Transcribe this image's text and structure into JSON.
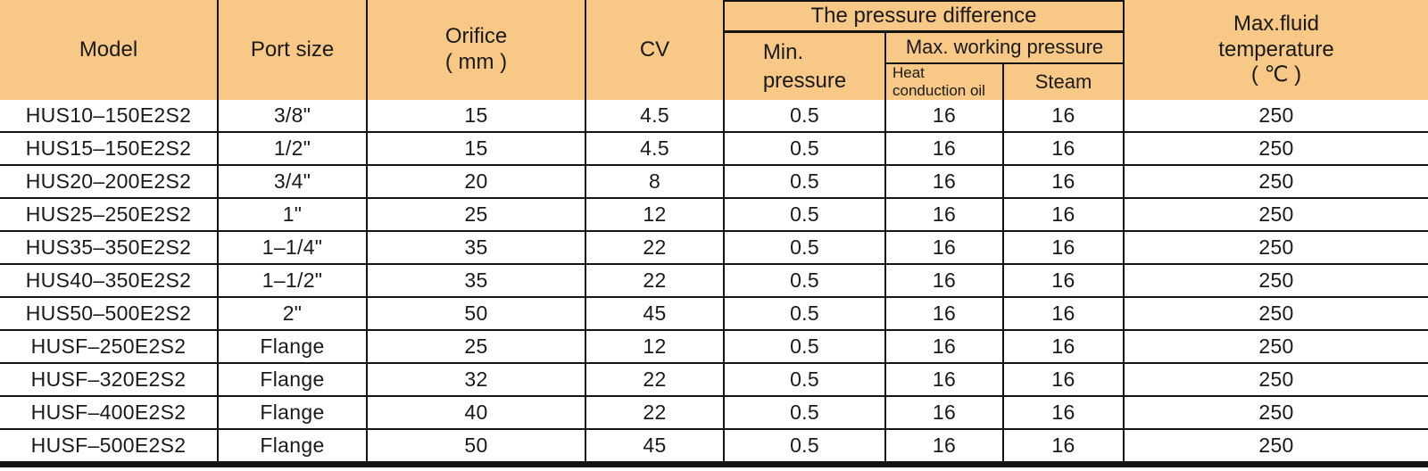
{
  "table": {
    "header": {
      "model": "Model",
      "port_size": "Port size",
      "orifice_line1": "Orifice",
      "orifice_line2": "( mm )",
      "cv": "CV",
      "pressure_difference": "The pressure difference",
      "min_pressure_line1": "Min.",
      "min_pressure_line2": "pressure",
      "max_working_pressure": "Max. working pressure",
      "heat_oil_line1": "Heat",
      "heat_oil_line2": "conduction oil",
      "steam": "Steam",
      "max_fluid_line1": "Max.fluid",
      "max_fluid_line2": "temperature",
      "max_fluid_line3": "( ℃ )"
    },
    "rows": [
      {
        "model": "HUS10–150E2S2",
        "port_size": "3/8\"",
        "orifice": "15",
        "cv": "4.5",
        "min_pressure": "0.5",
        "heat_conduction_oil": "16",
        "steam": "16",
        "max_fluid_temp": "250"
      },
      {
        "model": "HUS15–150E2S2",
        "port_size": "1/2\"",
        "orifice": "15",
        "cv": "4.5",
        "min_pressure": "0.5",
        "heat_conduction_oil": "16",
        "steam": "16",
        "max_fluid_temp": "250"
      },
      {
        "model": "HUS20–200E2S2",
        "port_size": "3/4\"",
        "orifice": "20",
        "cv": "8",
        "min_pressure": "0.5",
        "heat_conduction_oil": "16",
        "steam": "16",
        "max_fluid_temp": "250"
      },
      {
        "model": "HUS25–250E2S2",
        "port_size": "1\"",
        "orifice": "25",
        "cv": "12",
        "min_pressure": "0.5",
        "heat_conduction_oil": "16",
        "steam": "16",
        "max_fluid_temp": "250"
      },
      {
        "model": "HUS35–350E2S2",
        "port_size": "1–1/4\"",
        "orifice": "35",
        "cv": "22",
        "min_pressure": "0.5",
        "heat_conduction_oil": "16",
        "steam": "16",
        "max_fluid_temp": "250"
      },
      {
        "model": "HUS40–350E2S2",
        "port_size": "1–1/2\"",
        "orifice": "35",
        "cv": "22",
        "min_pressure": "0.5",
        "heat_conduction_oil": "16",
        "steam": "16",
        "max_fluid_temp": "250"
      },
      {
        "model": "HUS50–500E2S2",
        "port_size": "2\"",
        "orifice": "50",
        "cv": "45",
        "min_pressure": "0.5",
        "heat_conduction_oil": "16",
        "steam": "16",
        "max_fluid_temp": "250"
      },
      {
        "model": "HUSF–250E2S2",
        "port_size": "Flange",
        "orifice": "25",
        "cv": "12",
        "min_pressure": "0.5",
        "heat_conduction_oil": "16",
        "steam": "16",
        "max_fluid_temp": "250"
      },
      {
        "model": "HUSF–320E2S2",
        "port_size": "Flange",
        "orifice": "32",
        "cv": "22",
        "min_pressure": "0.5",
        "heat_conduction_oil": "16",
        "steam": "16",
        "max_fluid_temp": "250"
      },
      {
        "model": "HUSF–400E2S2",
        "port_size": "Flange",
        "orifice": "40",
        "cv": "22",
        "min_pressure": "0.5",
        "heat_conduction_oil": "16",
        "steam": "16",
        "max_fluid_temp": "250"
      },
      {
        "model": "HUSF–500E2S2",
        "port_size": "Flange",
        "orifice": "50",
        "cv": "45",
        "min_pressure": "0.5",
        "heat_conduction_oil": "16",
        "steam": "16",
        "max_fluid_temp": "250"
      }
    ]
  },
  "colors": {
    "header_bg": "#F7C886",
    "line": "#141414",
    "text": "#1A1A1A",
    "row_bg": "#FFFFFF"
  }
}
